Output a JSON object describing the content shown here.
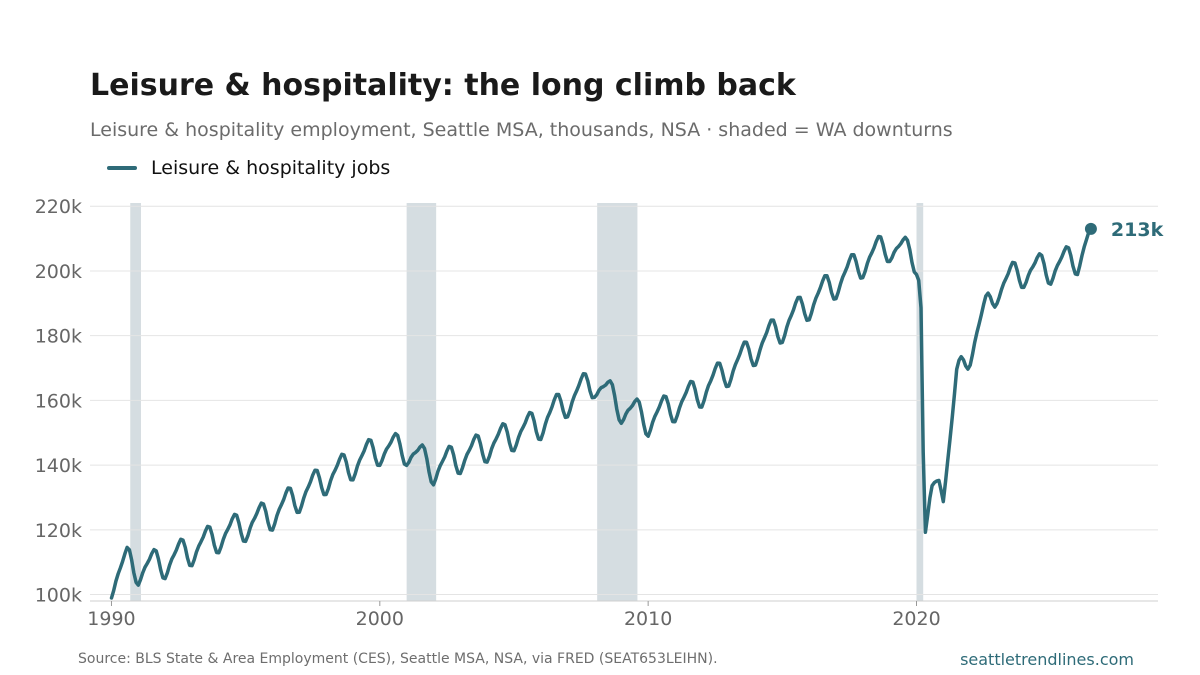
{
  "title": "Leisure & hospitality: the long climb back",
  "subtitle": "Leisure & hospitality employment, Seattle MSA, thousands, NSA · shaded = WA downturns",
  "footer": {
    "source": "Source: BLS State & Area Employment (CES), Seattle MSA, NSA, via FRED (SEAT653LEIHN).",
    "brand": "seattletrendlines.com"
  },
  "colors": {
    "line": "#2e6b78",
    "shade": "#d5dde1",
    "grid": "#e4e4e4",
    "tick_text": "#666666"
  },
  "chart_data": {
    "type": "line",
    "x_unit": "year",
    "y_unit": "thousands",
    "xlim": [
      1989.2,
      2029.0
    ],
    "ylim": [
      98,
      221
    ],
    "xticks": [
      1990,
      2000,
      2010,
      2020
    ],
    "xtick_labels": [
      "1990",
      "2000",
      "2010",
      "2020"
    ],
    "yticks": [
      100,
      120,
      140,
      160,
      180,
      200,
      220
    ],
    "ytick_labels": [
      "100k",
      "120k",
      "140k",
      "160k",
      "180k",
      "200k",
      "220k"
    ],
    "grid": "horizontal",
    "legend_position": "top-left",
    "shaded_periods": [
      [
        1990.7,
        1991.1
      ],
      [
        2001.0,
        2002.1
      ],
      [
        2008.1,
        2009.6
      ],
      [
        2020.0,
        2020.25
      ]
    ],
    "series": [
      {
        "name": "Leisure & hospitality jobs",
        "seasonal_amplitude": 5.2,
        "trend": [
          [
            1990.0,
            104
          ],
          [
            1990.6,
            110
          ],
          [
            1991.0,
            108
          ],
          [
            1992.0,
            110
          ],
          [
            1994.0,
            118
          ],
          [
            1996.0,
            125
          ],
          [
            1998.0,
            136
          ],
          [
            2000.0,
            145
          ],
          [
            2001.0,
            145
          ],
          [
            2002.0,
            139
          ],
          [
            2004.0,
            146
          ],
          [
            2006.0,
            153
          ],
          [
            2007.0,
            160
          ],
          [
            2008.0,
            166
          ],
          [
            2009.0,
            158
          ],
          [
            2010.0,
            154
          ],
          [
            2012.0,
            163
          ],
          [
            2014.0,
            176
          ],
          [
            2016.0,
            190
          ],
          [
            2018.0,
            203
          ],
          [
            2019.0,
            208
          ],
          [
            2020.0,
            204
          ],
          [
            2020.15,
            198
          ],
          [
            2020.3,
            117
          ],
          [
            2020.55,
            132
          ],
          [
            2020.85,
            136
          ],
          [
            2021.0,
            130
          ],
          [
            2021.5,
            166
          ],
          [
            2022.0,
            176
          ],
          [
            2022.5,
            186
          ],
          [
            2023.0,
            195
          ],
          [
            2024.0,
            200
          ],
          [
            2025.0,
            201
          ],
          [
            2026.0,
            204
          ],
          [
            2026.5,
            211
          ]
        ],
        "last_value": 213,
        "last_x": 2026.5,
        "end_label": "213k"
      }
    ]
  }
}
